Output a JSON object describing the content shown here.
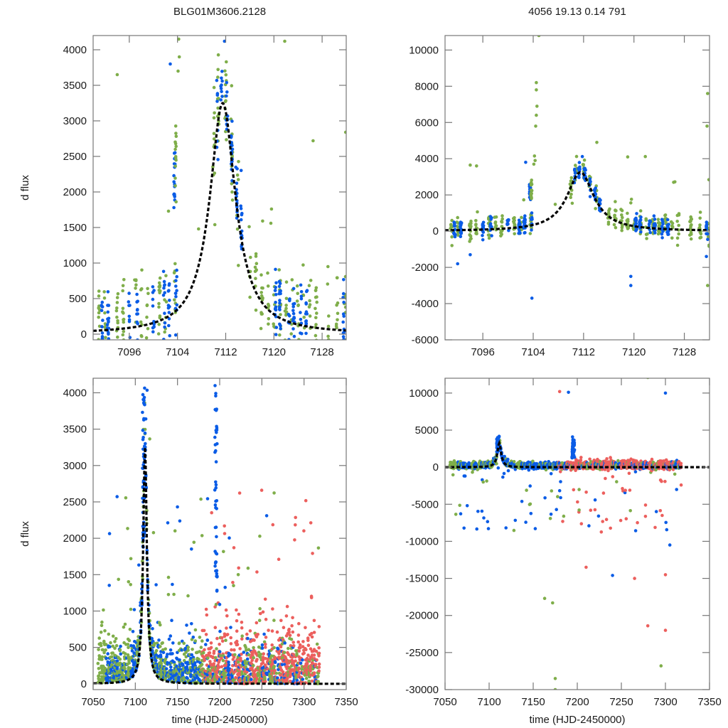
{
  "figure": {
    "title_left": "BLG01M3606.2128",
    "title_right": "4056  19.13  0.14  791",
    "xlabel": "time (HJD-2450000)",
    "ylabel": "d flux"
  },
  "colors": {
    "green": "#7fae4a",
    "blue": "#0a5ce6",
    "red": "#ec5f5d",
    "model": "#000000"
  },
  "chart_data": [
    {
      "id": "top-left",
      "type": "scatter",
      "title": "BLG01M3606.2128",
      "xlabel": "",
      "ylabel": "d flux",
      "xlim": [
        7090,
        7132
      ],
      "ylim": [
        -80,
        4200
      ],
      "xticks": [
        7096,
        7104,
        7112,
        7120,
        7128
      ],
      "yticks": [
        0,
        500,
        1000,
        1500,
        2000,
        2500,
        3000,
        3500,
        4000
      ],
      "model": {
        "t0": 7111.5,
        "peak": 3250,
        "tau": 2.6,
        "style": "dashed-black"
      },
      "series": [
        {
          "name": "green",
          "color": "green"
        },
        {
          "name": "blue",
          "color": "blue"
        }
      ]
    },
    {
      "id": "top-right",
      "type": "scatter",
      "title": "4056  19.13  0.14  791",
      "xlabel": "",
      "ylabel": "",
      "xlim": [
        7090,
        7132
      ],
      "ylim": [
        -6000,
        10800
      ],
      "xticks": [
        7096,
        7104,
        7112,
        7120,
        7128
      ],
      "yticks": [
        -6000,
        -4000,
        -2000,
        0,
        2000,
        4000,
        6000,
        8000,
        10000
      ],
      "model": {
        "t0": 7111.5,
        "peak": 3250,
        "tau": 2.6,
        "style": "dashed-black"
      },
      "series": [
        {
          "name": "green",
          "color": "green"
        },
        {
          "name": "blue",
          "color": "blue"
        }
      ]
    },
    {
      "id": "bottom-left",
      "type": "scatter",
      "title": "",
      "xlabel": "time (HJD-2450000)",
      "ylabel": "d flux",
      "xlim": [
        7050,
        7350
      ],
      "ylim": [
        -80,
        4200
      ],
      "xticks": [
        7050,
        7100,
        7150,
        7200,
        7250,
        7300,
        7350
      ],
      "yticks": [
        0,
        500,
        1000,
        1500,
        2000,
        2500,
        3000,
        3500,
        4000
      ],
      "model": {
        "t0": 7111.5,
        "peak": 3250,
        "tau": 2.6,
        "style": "dashed-black"
      },
      "series": [
        {
          "name": "green",
          "color": "green"
        },
        {
          "name": "blue",
          "color": "blue"
        },
        {
          "name": "red",
          "color": "red"
        }
      ]
    },
    {
      "id": "bottom-right",
      "type": "scatter",
      "title": "",
      "xlabel": "time (HJD-2450000)",
      "ylabel": "",
      "xlim": [
        7050,
        7350
      ],
      "ylim": [
        -30000,
        12000
      ],
      "xticks": [
        7050,
        7100,
        7150,
        7200,
        7250,
        7300,
        7350
      ],
      "yticks": [
        -30000,
        -25000,
        -20000,
        -15000,
        -10000,
        -5000,
        0,
        5000,
        10000
      ],
      "model": {
        "t0": 7111.5,
        "peak": 3250,
        "tau": 2.6,
        "style": "dashed-black"
      },
      "series": [
        {
          "name": "green",
          "color": "green"
        },
        {
          "name": "blue",
          "color": "blue"
        },
        {
          "name": "red",
          "color": "red"
        }
      ]
    }
  ]
}
